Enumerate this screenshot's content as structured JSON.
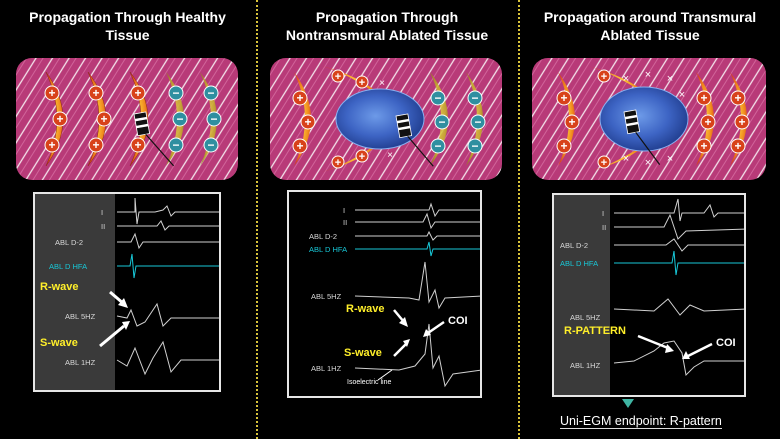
{
  "panels": [
    {
      "title_line1": "Propagation Through Healthy",
      "title_line2": "Tissue",
      "leads": [
        "I",
        "II",
        "ABL D-2",
        "ABL D HFA",
        "ABL 5HZ",
        "ABL 1HZ"
      ],
      "annotations": {
        "r_wave": "R-wave",
        "s_wave": "S-wave"
      }
    },
    {
      "title_line1": "Propagation Through",
      "title_line2": "Nontransmural Ablated Tissue",
      "leads": [
        "I",
        "II",
        "ABL D-2",
        "ABL D HFA",
        "ABL 5HZ",
        "ABL 1HZ"
      ],
      "annotations": {
        "r_wave": "R-wave",
        "s_wave": "S-wave",
        "coi": "COI",
        "isoelectric": "Isoelectric line"
      }
    },
    {
      "title_line1": "Propagation around Transmural",
      "title_line2": "Ablated Tissue",
      "leads": [
        "I",
        "II",
        "ABL D-2",
        "ABL D HFA",
        "ABL 5HZ",
        "ABL 1HZ"
      ],
      "annotations": {
        "r_pattern": "R-PATTERN",
        "coi": "COI"
      }
    }
  ],
  "symbols": {
    "positive": "+",
    "negative": "−",
    "blocked": "×"
  },
  "endpoint": "Uni-EGM endpoint: R-pattern",
  "colors": {
    "tissue": "#b83a78",
    "wavefront_positive": "#e8621e",
    "wavefront_negative": "#2f8fa0",
    "lesion": "#3d64c4",
    "accent_yellow": "#ffef2a",
    "hfa_cyan": "#18c8d8",
    "divider": "#d8c23a",
    "endpoint_marker": "#3fb5a3"
  }
}
